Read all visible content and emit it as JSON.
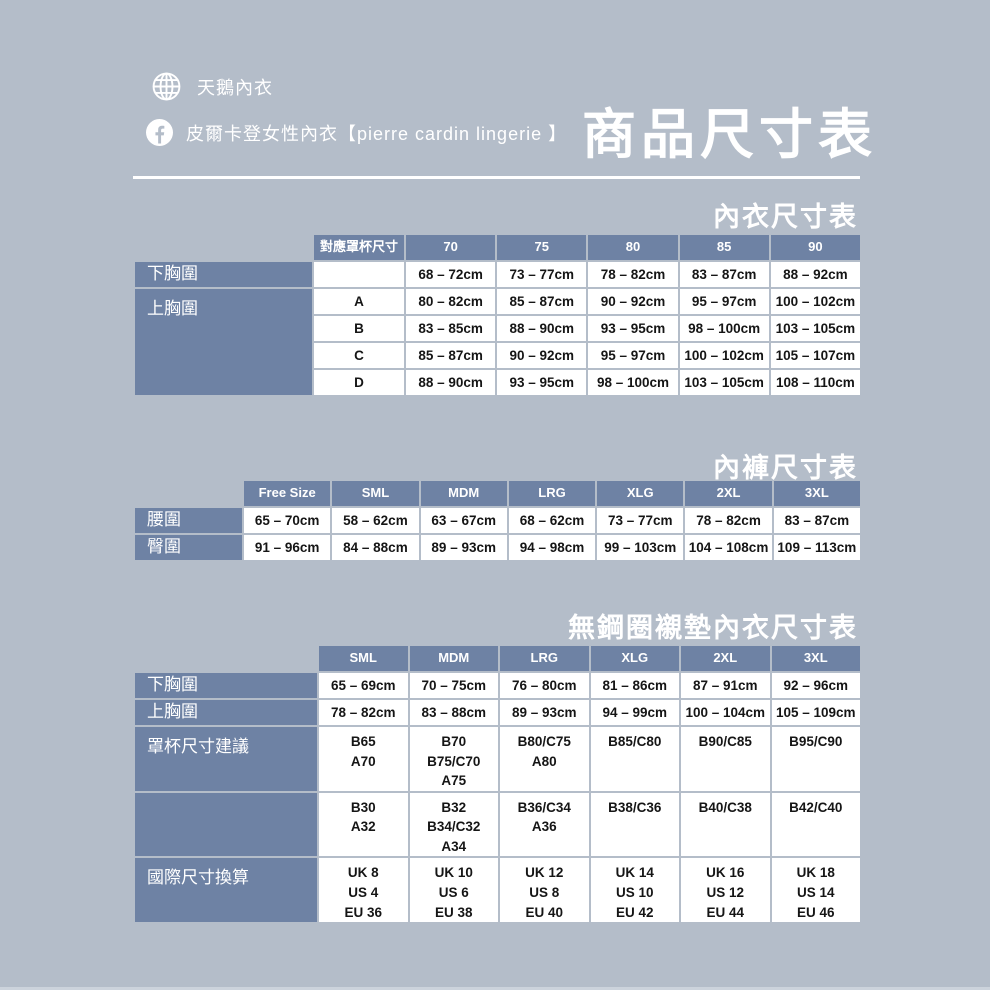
{
  "page": {
    "title": "商品尺寸表",
    "background_color": "#b4bdc9",
    "accent_color": "#6e82a4"
  },
  "header": {
    "brand_name": "天鵝內衣",
    "facebook_label": "皮爾卡登女性內衣【pierre cardin lingerie 】",
    "icons": {
      "globe": "globe-icon",
      "facebook": "facebook-icon"
    }
  },
  "tables": [
    {
      "section_title": "內衣尺寸表",
      "rows": [
        [
          {
            "t": "",
            "k": "blank"
          },
          {
            "t": "對應罩杯尺寸",
            "k": "head"
          },
          {
            "t": "70",
            "k": "head"
          },
          {
            "t": "75",
            "k": "head"
          },
          {
            "t": "80",
            "k": "head"
          },
          {
            "t": "85",
            "k": "head"
          },
          {
            "t": "90",
            "k": "head"
          }
        ],
        [
          {
            "t": "下胸圍",
            "k": "label"
          },
          {
            "t": "",
            "k": "data"
          },
          {
            "t": "68 – 72cm",
            "k": "data"
          },
          {
            "t": "73 – 77cm",
            "k": "data"
          },
          {
            "t": "78 – 82cm",
            "k": "data"
          },
          {
            "t": "83 – 87cm",
            "k": "data"
          },
          {
            "t": "88 – 92cm",
            "k": "data"
          }
        ],
        [
          {
            "t": "上胸圍",
            "k": "label top",
            "rs": 4
          },
          {
            "t": "A",
            "k": "data"
          },
          {
            "t": "80 – 82cm",
            "k": "data"
          },
          {
            "t": "85 – 87cm",
            "k": "data"
          },
          {
            "t": "90 – 92cm",
            "k": "data"
          },
          {
            "t": "95 – 97cm",
            "k": "data"
          },
          {
            "t": "100 – 102cm",
            "k": "data"
          }
        ],
        [
          {
            "t": "B",
            "k": "data"
          },
          {
            "t": "83 – 85cm",
            "k": "data"
          },
          {
            "t": "88 – 90cm",
            "k": "data"
          },
          {
            "t": "93 – 95cm",
            "k": "data"
          },
          {
            "t": "98 – 100cm",
            "k": "data"
          },
          {
            "t": "103 – 105cm",
            "k": "data"
          }
        ],
        [
          {
            "t": "C",
            "k": "data"
          },
          {
            "t": "85 – 87cm",
            "k": "data"
          },
          {
            "t": "90 – 92cm",
            "k": "data"
          },
          {
            "t": "95 – 97cm",
            "k": "data"
          },
          {
            "t": "100 – 102cm",
            "k": "data"
          },
          {
            "t": "105 – 107cm",
            "k": "data"
          }
        ],
        [
          {
            "t": "D",
            "k": "data"
          },
          {
            "t": "88 – 90cm",
            "k": "data"
          },
          {
            "t": "93 – 95cm",
            "k": "data"
          },
          {
            "t": "98 – 100cm",
            "k": "data"
          },
          {
            "t": "103 – 105cm",
            "k": "data"
          },
          {
            "t": "108 – 110cm",
            "k": "data"
          }
        ]
      ]
    },
    {
      "section_title": "內褲尺寸表",
      "rows": [
        [
          {
            "t": "",
            "k": "blank"
          },
          {
            "t": "Free Size",
            "k": "head"
          },
          {
            "t": "SML",
            "k": "head"
          },
          {
            "t": "MDM",
            "k": "head"
          },
          {
            "t": "LRG",
            "k": "head"
          },
          {
            "t": "XLG",
            "k": "head"
          },
          {
            "t": "2XL",
            "k": "head"
          },
          {
            "t": "3XL",
            "k": "head"
          }
        ],
        [
          {
            "t": "腰圍",
            "k": "label"
          },
          {
            "t": "65 – 70cm",
            "k": "data"
          },
          {
            "t": "58 – 62cm",
            "k": "data"
          },
          {
            "t": "63 – 67cm",
            "k": "data"
          },
          {
            "t": "68 – 62cm",
            "k": "data"
          },
          {
            "t": "73 – 77cm",
            "k": "data"
          },
          {
            "t": "78 – 82cm",
            "k": "data"
          },
          {
            "t": "83 – 87cm",
            "k": "data"
          }
        ],
        [
          {
            "t": "臀圍",
            "k": "label"
          },
          {
            "t": "91 – 96cm",
            "k": "data"
          },
          {
            "t": "84 – 88cm",
            "k": "data"
          },
          {
            "t": "89 – 93cm",
            "k": "data"
          },
          {
            "t": "94 – 98cm",
            "k": "data"
          },
          {
            "t": "99 – 103cm",
            "k": "data"
          },
          {
            "t": "104 – 108cm",
            "k": "data"
          },
          {
            "t": "109 – 113cm",
            "k": "data"
          }
        ]
      ]
    },
    {
      "section_title": "無鋼圈襯墊內衣尺寸表",
      "rows": [
        [
          {
            "t": "",
            "k": "blank"
          },
          {
            "t": "SML",
            "k": "head"
          },
          {
            "t": "MDM",
            "k": "head"
          },
          {
            "t": "LRG",
            "k": "head"
          },
          {
            "t": "XLG",
            "k": "head"
          },
          {
            "t": "2XL",
            "k": "head"
          },
          {
            "t": "3XL",
            "k": "head"
          }
        ],
        [
          {
            "t": "下胸圍",
            "k": "label"
          },
          {
            "t": "65 – 69cm",
            "k": "data"
          },
          {
            "t": "70 – 75cm",
            "k": "data"
          },
          {
            "t": "76 – 80cm",
            "k": "data"
          },
          {
            "t": "81 – 86cm",
            "k": "data"
          },
          {
            "t": "87 – 91cm",
            "k": "data"
          },
          {
            "t": "92 – 96cm",
            "k": "data"
          }
        ],
        [
          {
            "t": "上胸圍",
            "k": "label"
          },
          {
            "t": "78 – 82cm",
            "k": "data"
          },
          {
            "t": "83 – 88cm",
            "k": "data"
          },
          {
            "t": "89 – 93cm",
            "k": "data"
          },
          {
            "t": "94 – 99cm",
            "k": "data"
          },
          {
            "t": "100 – 104cm",
            "k": "data"
          },
          {
            "t": "105 – 109cm",
            "k": "data"
          }
        ],
        [
          {
            "t": "罩杯尺寸建議",
            "k": "label top"
          },
          {
            "t": "B65\nA70",
            "k": "data top"
          },
          {
            "t": "B70\nB75/C70\nA75",
            "k": "data top"
          },
          {
            "t": "B80/C75\nA80",
            "k": "data top"
          },
          {
            "t": "B85/C80",
            "k": "data top"
          },
          {
            "t": "B90/C85",
            "k": "data top"
          },
          {
            "t": "B95/C90",
            "k": "data top"
          }
        ],
        [
          {
            "t": "",
            "k": "label top"
          },
          {
            "t": "B30\nA32",
            "k": "data top"
          },
          {
            "t": "B32\nB34/C32\nA34",
            "k": "data top"
          },
          {
            "t": "B36/C34\nA36",
            "k": "data top"
          },
          {
            "t": "B38/C36",
            "k": "data top"
          },
          {
            "t": "B40/C38",
            "k": "data top"
          },
          {
            "t": "B42/C40",
            "k": "data top"
          }
        ],
        [
          {
            "t": "國際尺寸換算",
            "k": "label top"
          },
          {
            "t": "UK 8\nUS 4\nEU 36",
            "k": "data top"
          },
          {
            "t": "UK 10\nUS 6\nEU 38",
            "k": "data top"
          },
          {
            "t": "UK 12\nUS 8\nEU 40",
            "k": "data top"
          },
          {
            "t": "UK 14\nUS 10\nEU 42",
            "k": "data top"
          },
          {
            "t": "UK 16\nUS 12\nEU 44",
            "k": "data top"
          },
          {
            "t": "UK 18\nUS 14\nEU 46",
            "k": "data top"
          }
        ]
      ]
    }
  ]
}
